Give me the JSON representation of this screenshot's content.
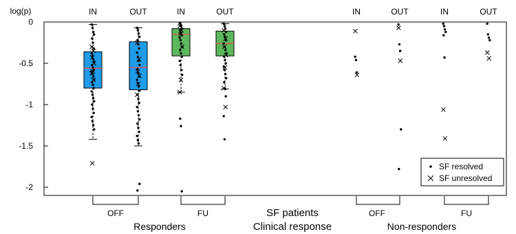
{
  "chart_data": {
    "type": "boxplot",
    "ylabel": "log(p)",
    "ylim": [
      -2.1,
      0
    ],
    "yticks": [
      0,
      -0.5,
      -1,
      -1.5,
      -2
    ],
    "ytick_labels": [
      "0",
      "-0.5",
      "-1",
      "-1.5",
      "-2"
    ],
    "grid": false,
    "legend_position": "bottom-right",
    "legend": [
      {
        "marker": "dot",
        "label": "SF resolved"
      },
      {
        "marker": "cross",
        "label": "SF unresolved"
      }
    ],
    "group_labels": {
      "center_line1": "SF patients",
      "center_line2": "Clinical response",
      "responders": "Responders",
      "non_responders": "Non-responders",
      "off": "OFF",
      "fu": "FU"
    },
    "colors": {
      "off_box": "#1e9be9",
      "fu_box": "#5cb85c",
      "median": "#e05050"
    },
    "columns": [
      {
        "label": "IN",
        "group": "Responders",
        "condition": "OFF",
        "box": true,
        "q1": -0.8,
        "median": -0.56,
        "q3": -0.36,
        "whisker_low": -1.42,
        "whisker_high": -0.03,
        "resolved": [
          -0.03,
          -0.07,
          -0.12,
          -0.15,
          -0.2,
          -0.25,
          -0.32,
          -0.38,
          -0.41,
          -0.45,
          -0.48,
          -0.52,
          -0.55,
          -0.58,
          -0.6,
          -0.63,
          -0.66,
          -0.7,
          -0.73,
          -0.76,
          -0.8,
          -0.84,
          -0.88,
          -0.92,
          -0.96,
          -1.0,
          -1.05,
          -1.1,
          -1.15,
          -1.2,
          -1.25,
          -1.3
        ],
        "unresolved": [
          -0.3,
          -0.35,
          -0.43,
          -0.5,
          -0.6,
          -0.62,
          -0.7,
          -1.71
        ]
      },
      {
        "label": "OUT",
        "group": "Responders",
        "condition": "OFF",
        "box": true,
        "q1": -0.82,
        "median": -0.55,
        "q3": -0.24,
        "whisker_low": -1.5,
        "whisker_high": -0.07,
        "resolved": [
          -0.07,
          -0.1,
          -0.14,
          -0.18,
          -0.22,
          -0.27,
          -0.32,
          -0.37,
          -0.42,
          -0.47,
          -0.52,
          -0.57,
          -0.62,
          -0.66,
          -0.7,
          -0.74,
          -0.78,
          -0.83,
          -0.88,
          -0.93,
          -0.98,
          -1.03,
          -1.08,
          -1.13,
          -1.18,
          -1.23,
          -1.28,
          -1.33,
          -1.38,
          -1.43,
          -1.47,
          -1.96,
          -2.04
        ],
        "unresolved": [
          -0.25,
          -0.45,
          -0.6,
          -0.65,
          -0.75,
          -0.88
        ]
      },
      {
        "label": "IN",
        "group": "Responders",
        "condition": "FU",
        "box": true,
        "q1": -0.41,
        "median": -0.15,
        "q3": -0.08,
        "whisker_low": -0.85,
        "whisker_high": 0.0,
        "resolved": [
          -0.01,
          -0.03,
          -0.05,
          -0.08,
          -0.1,
          -0.13,
          -0.16,
          -0.19,
          -0.22,
          -0.26,
          -0.3,
          -0.34,
          -0.38,
          -0.42,
          -0.47,
          -0.52,
          -0.58,
          -0.64,
          -1.17,
          -1.26,
          -2.05
        ],
        "unresolved": [
          -0.05,
          -0.1,
          -0.15,
          -0.3,
          -0.7,
          -0.85
        ]
      },
      {
        "label": "OUT",
        "group": "Responders",
        "condition": "FU",
        "box": true,
        "q1": -0.41,
        "median": -0.26,
        "q3": -0.11,
        "whisker_low": -0.81,
        "whisker_high": -0.02,
        "resolved": [
          -0.02,
          -0.05,
          -0.08,
          -0.12,
          -0.15,
          -0.18,
          -0.22,
          -0.26,
          -0.3,
          -0.34,
          -0.38,
          -0.42,
          -0.46,
          -0.5,
          -0.54,
          -0.58,
          -0.63,
          -0.68,
          -0.73,
          -0.81,
          -0.9,
          -1.14,
          -1.42
        ],
        "unresolved": [
          -0.1,
          -0.2,
          -0.3,
          -0.4,
          -0.55,
          -0.8,
          -1.03
        ]
      },
      {
        "label": "IN",
        "group": "Non-responders",
        "condition": "OFF",
        "box": false,
        "resolved": [
          -0.42,
          -0.46,
          -0.61
        ],
        "unresolved": [
          -0.11,
          -0.64
        ]
      },
      {
        "label": "OUT",
        "group": "Non-responders",
        "condition": "OFF",
        "box": false,
        "resolved": [
          -0.03,
          -0.27,
          -0.35,
          -1.3,
          -1.78
        ],
        "unresolved": [
          -0.07,
          -0.47
        ]
      },
      {
        "label": "IN",
        "group": "Non-responders",
        "condition": "FU",
        "box": false,
        "resolved": [
          -0.02,
          -0.05,
          -0.09,
          -0.12,
          -0.16,
          -0.43
        ],
        "unresolved": [
          -1.06,
          -1.41
        ]
      },
      {
        "label": "OUT",
        "group": "Non-responders",
        "condition": "FU",
        "box": false,
        "resolved": [
          -0.02,
          -0.15,
          -0.19,
          -0.22
        ],
        "unresolved": [
          -0.37,
          -0.44
        ]
      }
    ]
  }
}
